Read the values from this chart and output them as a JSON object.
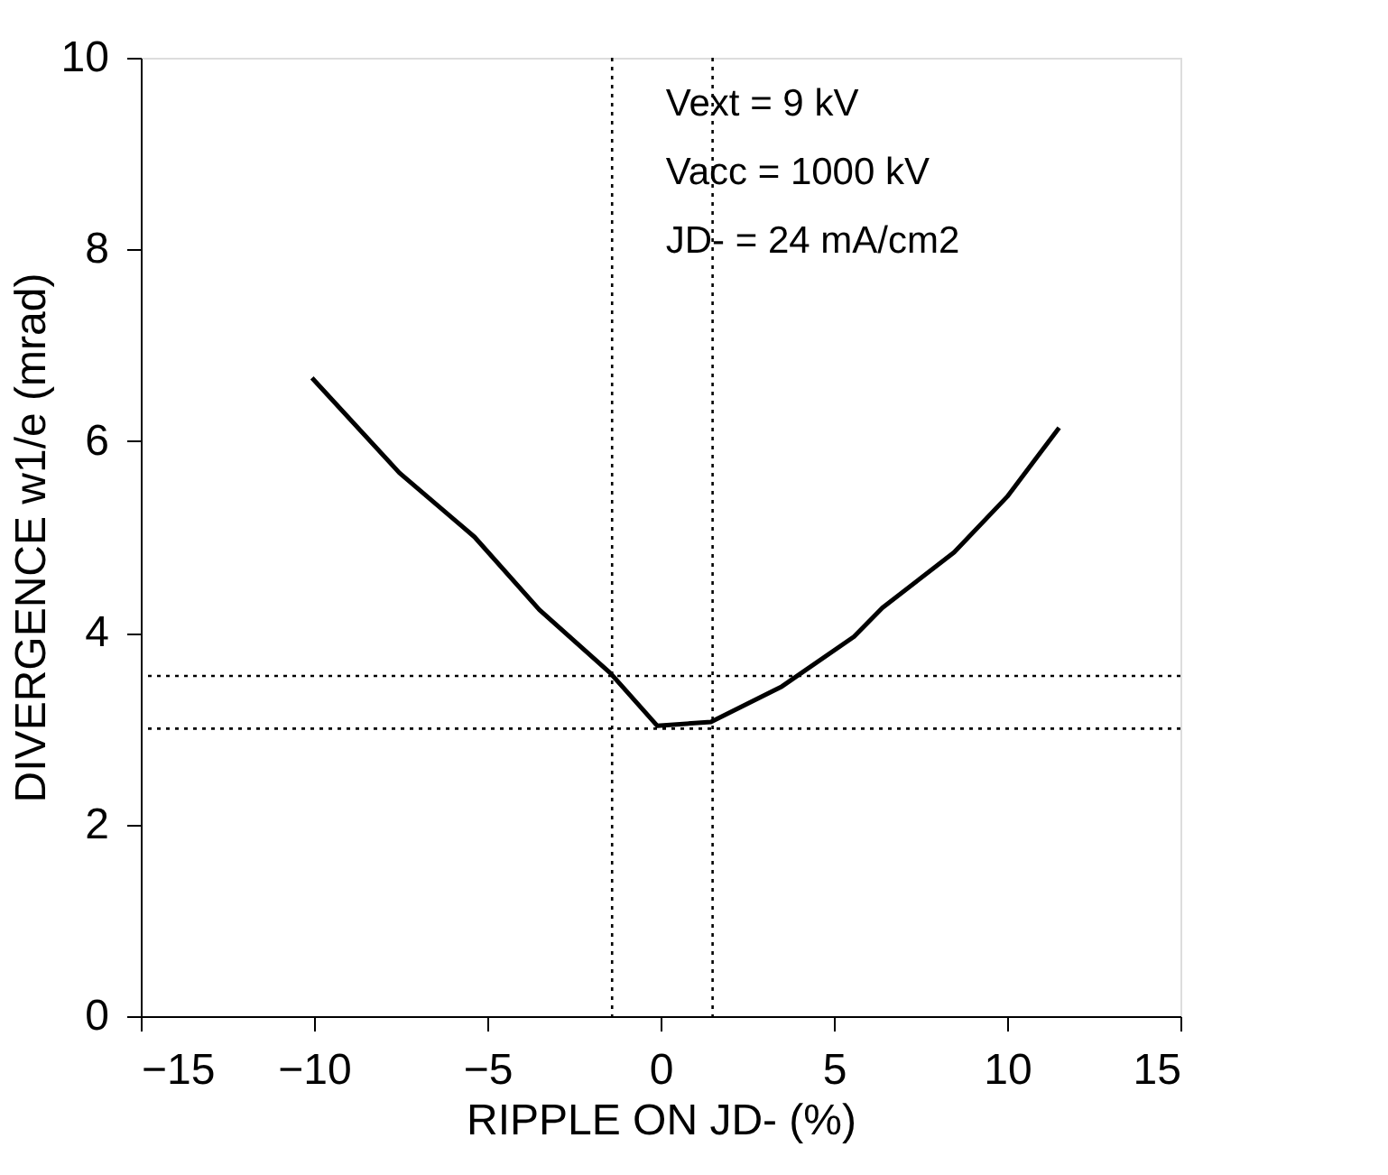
{
  "chart_data": {
    "type": "line",
    "xlabel": "RIPPLE ON JD- (%)",
    "ylabel": "DIVERGENCE w1/e (mrad)",
    "x": [
      -10.06,
      -7.54,
      -5.37,
      -3.5,
      -1.45,
      -0.1,
      1.45,
      3.5,
      5.58,
      6.4,
      8.47,
      10.0,
      11.5
    ],
    "series": [
      {
        "color": "#000000",
        "values": [
          6.66,
          5.67,
          5.0,
          4.24,
          3.58,
          3.03,
          3.07,
          3.44,
          3.96,
          4.26,
          4.84,
          5.42,
          6.14
        ]
      }
    ],
    "xlim": [
      -15,
      15
    ],
    "xticks": [
      -15,
      -10,
      -5,
      0,
      5,
      10,
      15
    ],
    "ylim": [
      0,
      10
    ],
    "yticks": [
      0,
      2,
      4,
      6,
      8,
      10
    ],
    "grid": false,
    "marker": "none",
    "line_style": "solid",
    "ref_lines": [
      {
        "axis": "x",
        "value": -1.4,
        "line_style": "dotted",
        "color": "#000000"
      },
      {
        "axis": "x",
        "value": 1.5,
        "line_style": "dotted",
        "color": "#000000"
      },
      {
        "axis": "y",
        "value": 3.55,
        "line_style": "dotted",
        "color": "#000000"
      },
      {
        "axis": "y",
        "value": 3.0,
        "line_style": "dotted",
        "color": "#000000"
      }
    ],
    "annotations": [
      "Vext = 9 kV",
      "Vacc = 1000 kV",
      "JD- = 24 mA/cm2"
    ]
  }
}
